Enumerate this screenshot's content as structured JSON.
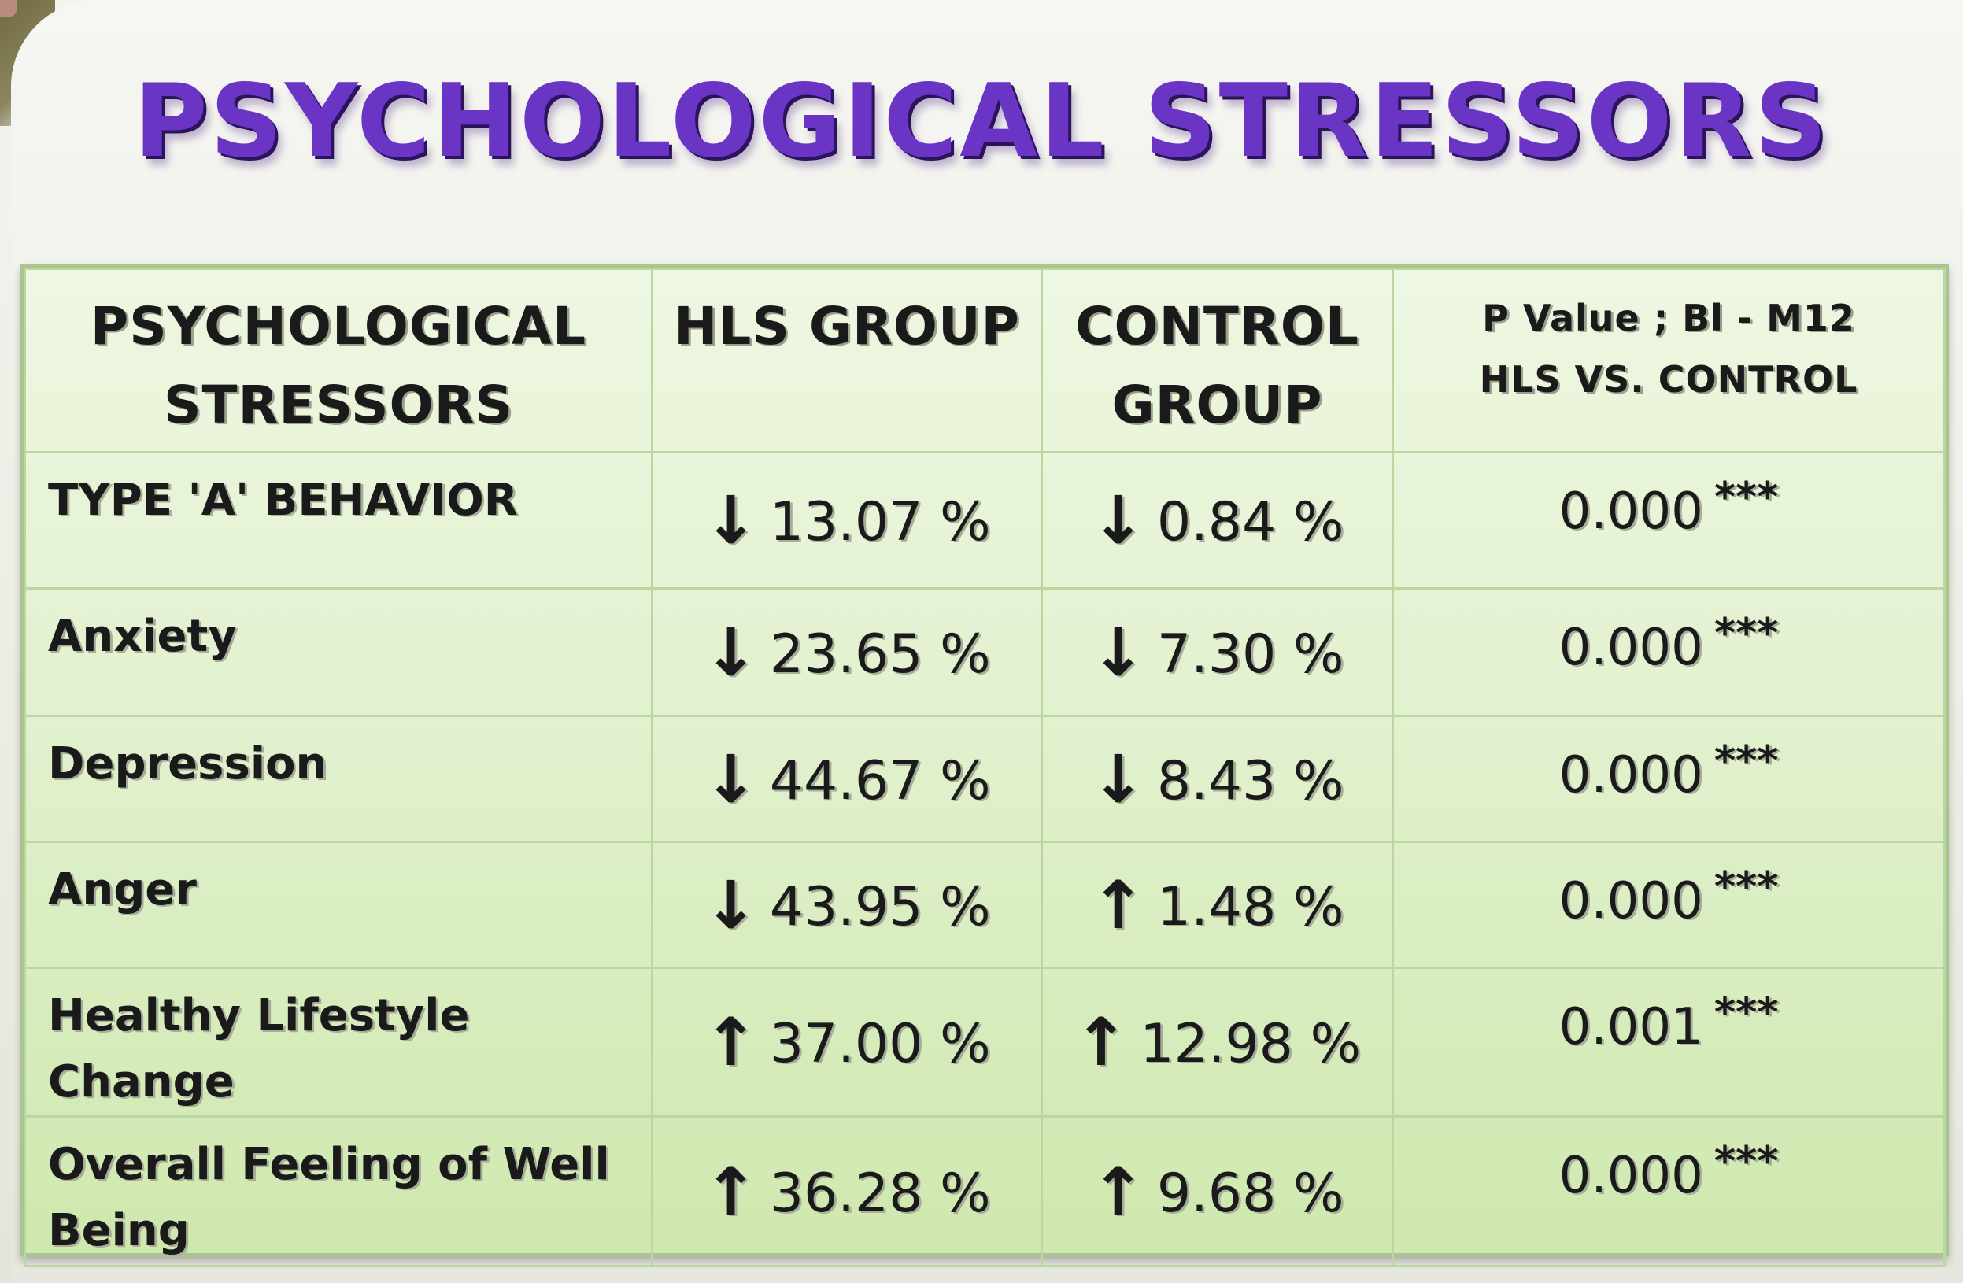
{
  "title": "PSYCHOLOGICAL STRESSORS",
  "table": {
    "headers": {
      "col1_line1": "PSYCHOLOGICAL",
      "col1_line2": "STRESSORS",
      "col2": "HLS GROUP",
      "col3_line1": "CONTROL",
      "col3_line2": "GROUP",
      "col4_line1": "P Value ; Bl - M12",
      "col4_line2": "HLS VS. CONTROL"
    },
    "rows": [
      {
        "label": "TYPE 'A' BEHAVIOR",
        "hls_arrow": "down-arrow-icon",
        "hls": "13.07 %",
        "control_arrow": "down-arrow-icon",
        "control": "0.84 %",
        "p": "0.000",
        "sig": "***"
      },
      {
        "label": "Anxiety",
        "hls_arrow": "down-arrow-icon",
        "hls": "23.65 %",
        "control_arrow": "down-arrow-icon",
        "control": "7.30 %",
        "p": "0.000",
        "sig": "***"
      },
      {
        "label": "Depression",
        "hls_arrow": "down-arrow-icon",
        "hls": "44.67 %",
        "control_arrow": "down-arrow-icon",
        "control": "8.43 %",
        "p": "0.000",
        "sig": "***"
      },
      {
        "label": "Anger",
        "hls_arrow": "down-arrow-icon",
        "hls": "43.95 %",
        "control_arrow": "up-arrow-icon",
        "control": "1.48 %",
        "p": "0.000",
        "sig": "***"
      },
      {
        "label": "Healthy Lifestyle Change",
        "hls_arrow": "up-arrow-icon",
        "hls": "37.00 %",
        "control_arrow": "up-arrow-icon",
        "control": "12.98 %",
        "p": "0.001",
        "sig": "***"
      },
      {
        "label": "Overall Feeling of Well Being",
        "hls_arrow": "up-arrow-icon",
        "hls": "36.28 %",
        "control_arrow": "up-arrow-icon",
        "control": "9.68 %",
        "p": "0.000",
        "sig": "***"
      }
    ]
  },
  "colors": {
    "title": "#6a35c4",
    "table_bg": "#e2f1cf",
    "grid": "#bcd6a2"
  }
}
